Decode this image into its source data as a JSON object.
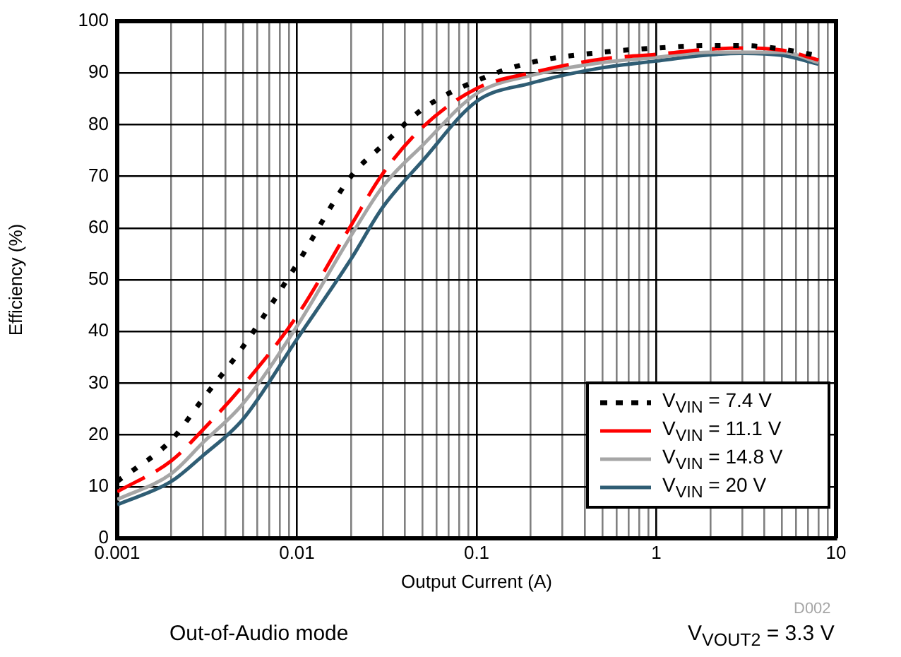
{
  "chart_data": {
    "type": "line",
    "xlabel": "Output Current (A)",
    "ylabel": "Efficiency (%)",
    "annotations": [
      "D002",
      "Out-of-Audio mode",
      "V$_{VOUT2}$ = 3.3 V"
    ],
    "log": "x",
    "grid": true,
    "legend": "bottom right",
    "marker": "none",
    "xlim": [
      0.001,
      10
    ],
    "ylim": [
      0,
      100
    ],
    "xticks": [
      0.001,
      {
        "value": 0.002,
        "label": null
      },
      {
        "value": 0.003,
        "label": null
      },
      {
        "value": 0.004,
        "label": null
      },
      {
        "value": 0.005,
        "label": null
      },
      {
        "value": 0.006,
        "label": null
      },
      {
        "value": 0.007,
        "label": null
      },
      {
        "value": 0.008,
        "label": null
      },
      {
        "value": 0.009,
        "label": null
      },
      0.01,
      {
        "value": 0.02,
        "label": null
      },
      {
        "value": 0.03,
        "label": null
      },
      {
        "value": 0.04,
        "label": null
      },
      {
        "value": 0.05,
        "label": null
      },
      {
        "value": 0.06,
        "label": null
      },
      {
        "value": 0.07,
        "label": null
      },
      {
        "value": 0.08,
        "label": null
      },
      {
        "value": 0.09,
        "label": null
      },
      0.1,
      {
        "value": 0.2,
        "label": null
      },
      {
        "value": 0.3,
        "label": null
      },
      {
        "value": 0.4,
        "label": null
      },
      {
        "value": 0.5,
        "label": null
      },
      {
        "value": 0.6,
        "label": null
      },
      {
        "value": 0.7,
        "label": null
      },
      {
        "value": 0.8,
        "label": null
      },
      {
        "value": 0.9,
        "label": null
      },
      1,
      {
        "value": 2,
        "label": null
      },
      {
        "value": 3,
        "label": null
      },
      {
        "value": 4,
        "label": null
      },
      {
        "value": 5,
        "label": null
      },
      {
        "value": 6,
        "label": null
      },
      {
        "value": 7,
        "label": null
      },
      {
        "value": 8,
        "label": null
      },
      {
        "value": 9,
        "label": null
      },
      10
    ],
    "yticks": [
      0,
      10,
      20,
      30,
      40,
      50,
      60,
      70,
      80,
      90,
      100
    ],
    "x": [
      0.001,
      0.002,
      0.003,
      0.005,
      0.01,
      0.02,
      0.03,
      0.05,
      0.1,
      0.2,
      0.5,
      1,
      2,
      3,
      5,
      8
    ],
    "series": [
      {
        "name": "V$_{VIN}$ = 7.4 V",
        "color": "#000000",
        "line_style": "dotted",
        "values": [
          11,
          19,
          27,
          37,
          53,
          70,
          76,
          83,
          88.5,
          92,
          94,
          94.8,
          95.3,
          95.3,
          94.6,
          93.3
        ]
      },
      {
        "name": "V$_{VIN}$ = 11.1 V",
        "color": "#ff0000",
        "line_style": "dashed",
        "values": [
          9,
          15,
          21,
          29.5,
          43,
          60.5,
          70.5,
          79.5,
          87,
          90,
          92.7,
          93.6,
          94.6,
          94.8,
          94.4,
          92.5
        ]
      },
      {
        "name": "V$_{VIN}$ = 14.8 V",
        "color": "#a6a6a6",
        "line_style": "solid",
        "values": [
          7.5,
          12.5,
          18.5,
          26,
          41,
          58.5,
          68,
          76,
          86,
          89.5,
          92,
          93,
          94,
          94,
          94,
          92
        ]
      },
      {
        "name": "V$_{VIN}$ = 20 V",
        "color": "#2f5d74",
        "line_style": "solid",
        "values": [
          6.5,
          11,
          16,
          23,
          38.5,
          54,
          64,
          73,
          84.5,
          88,
          91,
          92.3,
          93.5,
          93.8,
          93.4,
          91.7
        ]
      }
    ]
  }
}
